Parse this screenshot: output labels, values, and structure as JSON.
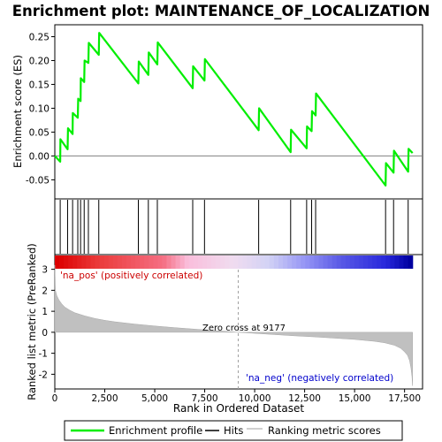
{
  "chart_data": {
    "type": "line",
    "title": "Enrichment plot: MAINTENANCE_OF_LOCALIZATION",
    "top_panel": {
      "ylabel": "Enrichment score (ES)",
      "ylim": [
        -0.09,
        0.275
      ],
      "yticks": [
        -0.05,
        0.0,
        0.05,
        0.1,
        0.15,
        0.2,
        0.25
      ],
      "ytick_labels": [
        "-0.05",
        "0.00",
        "0.05",
        "0.10",
        "0.15",
        "0.20",
        "0.25"
      ],
      "zero_line": true,
      "series": [
        {
          "name": "Enrichment profile",
          "color": "#00ee00",
          "x": [
            0,
            270,
            280,
            640,
            660,
            890,
            900,
            1150,
            1170,
            1290,
            1300,
            1470,
            1490,
            1680,
            1700,
            2200,
            2220,
            4180,
            4200,
            4680,
            4700,
            5130,
            5150,
            6900,
            6920,
            7490,
            7510,
            10200,
            10220,
            11800,
            11820,
            12600,
            12620,
            12850,
            12870,
            13050,
            13070,
            16550,
            16570,
            16950,
            16970,
            17680,
            17700,
            17900
          ],
          "y": [
            0.0,
            -0.012,
            0.035,
            0.014,
            0.058,
            0.046,
            0.09,
            0.08,
            0.12,
            0.115,
            0.163,
            0.155,
            0.2,
            0.195,
            0.237,
            0.212,
            0.258,
            0.152,
            0.198,
            0.17,
            0.217,
            0.192,
            0.238,
            0.142,
            0.188,
            0.158,
            0.203,
            0.054,
            0.1,
            0.008,
            0.055,
            0.016,
            0.062,
            0.052,
            0.094,
            0.085,
            0.131,
            -0.062,
            -0.015,
            -0.035,
            0.011,
            -0.033,
            0.015,
            0.006
          ]
        }
      ]
    },
    "hits": {
      "name": "Hits",
      "positions": [
        270,
        640,
        890,
        1150,
        1290,
        1470,
        1680,
        2200,
        4180,
        4680,
        5130,
        6900,
        7490,
        10200,
        11800,
        12600,
        12850,
        13050,
        16550,
        16950,
        17680
      ]
    },
    "bottom_panel": {
      "ylabel": "Ranked list metric (PreRanked)",
      "xlabel": "Rank in Ordered Dataset",
      "xlim": [
        0,
        18400
      ],
      "ylim": [
        -2.7,
        3.7
      ],
      "xticks": [
        0,
        2500,
        5000,
        7500,
        10000,
        12500,
        15000,
        17500
      ],
      "xtick_labels": [
        "0",
        "2,500",
        "5,000",
        "7,500",
        "10,000",
        "12,500",
        "15,000",
        "17,500"
      ],
      "yticks": [
        -2,
        -1,
        0,
        1,
        2,
        3
      ],
      "ytick_labels": [
        "-2",
        "-1",
        "0",
        "1",
        "2",
        "3"
      ],
      "series": [
        {
          "name": "Ranking metric scores",
          "color": "#c0c0c0",
          "x": [
            0,
            30,
            100,
            200,
            350,
            500,
            750,
            1000,
            1500,
            2000,
            2500,
            3000,
            4000,
            5000,
            6000,
            7000,
            8000,
            9177,
            10000,
            11000,
            12000,
            13000,
            14000,
            15000,
            16000,
            16500,
            17000,
            17300,
            17500,
            17650,
            17750,
            17820,
            17870,
            17900
          ],
          "y": [
            3.2,
            2.0,
            1.75,
            1.55,
            1.35,
            1.2,
            1.05,
            0.93,
            0.78,
            0.66,
            0.57,
            0.5,
            0.39,
            0.3,
            0.22,
            0.15,
            0.08,
            0.0,
            -0.05,
            -0.11,
            -0.17,
            -0.22,
            -0.28,
            -0.34,
            -0.43,
            -0.5,
            -0.62,
            -0.76,
            -0.93,
            -1.1,
            -1.35,
            -1.7,
            -2.1,
            -2.55
          ]
        }
      ],
      "zero_cross_label": "Zero cross at 9177",
      "zero_cross_rank": 9177,
      "pos_label": "'na_pos' (positively correlated)",
      "neg_label": "'na_neg' (negatively correlated)",
      "pos_color": "#cc0000",
      "neg_color": "#0000cc"
    },
    "legend": {
      "placement": "bottom",
      "entries": [
        {
          "name": "Enrichment profile",
          "color": "#00ee00"
        },
        {
          "name": "Hits",
          "color": "#000000"
        },
        {
          "name": "Ranking metric scores",
          "color": "#c0c0c0"
        }
      ]
    }
  }
}
